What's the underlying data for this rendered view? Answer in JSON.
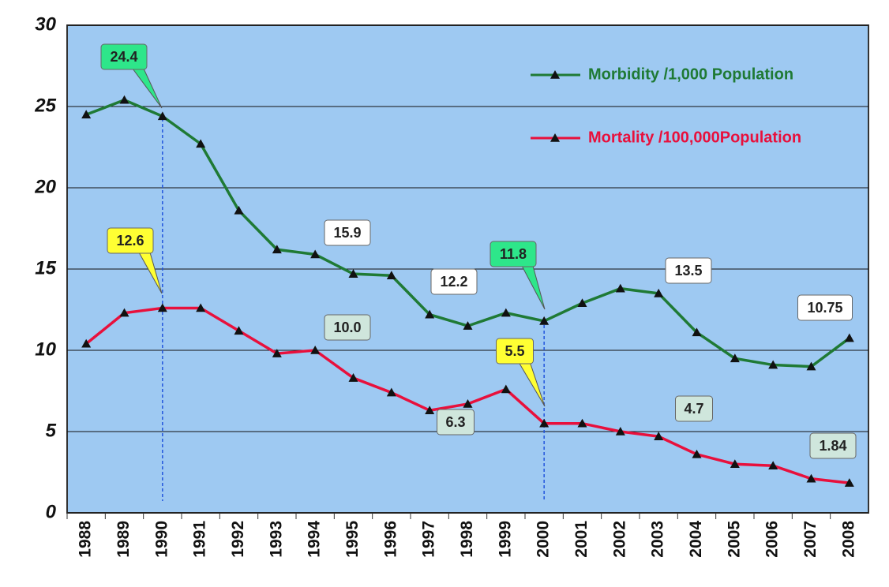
{
  "chart_data": {
    "type": "line",
    "categories": [
      "1988",
      "1989",
      "1990",
      "1991",
      "1992",
      "1993",
      "1994",
      "1995",
      "1996",
      "1997",
      "1998",
      "1999",
      "2000",
      "2001",
      "2002",
      "2003",
      "2004",
      "2005",
      "2006",
      "2007",
      "2008"
    ],
    "series": [
      {
        "name": "Morbidity /1,000 Population",
        "color": "#1f7a35",
        "values": [
          24.5,
          25.4,
          24.4,
          22.7,
          18.6,
          16.2,
          15.9,
          14.7,
          14.6,
          12.2,
          11.5,
          12.3,
          11.8,
          12.9,
          13.8,
          13.5,
          11.1,
          9.5,
          9.1,
          9.0,
          10.75
        ],
        "value_labels": [
          null,
          null,
          "24.4",
          null,
          null,
          null,
          "15.9",
          null,
          null,
          "12.2",
          null,
          null,
          "11.8",
          null,
          null,
          "13.5",
          null,
          null,
          null,
          null,
          "10.75"
        ],
        "label_colors": [
          null,
          null,
          "#2ee68a",
          null,
          null,
          null,
          "#ffffff",
          null,
          null,
          "#ffffff",
          null,
          null,
          "#2ee68a",
          null,
          null,
          "#ffffff",
          null,
          null,
          null,
          null,
          "#ffffff"
        ]
      },
      {
        "name": "Mortality /100,000Population",
        "color": "#e8103c",
        "values": [
          10.4,
          12.3,
          12.6,
          12.6,
          11.2,
          9.8,
          10.0,
          8.3,
          7.4,
          6.3,
          6.7,
          7.6,
          5.5,
          5.5,
          5.0,
          4.7,
          3.6,
          3.0,
          2.9,
          2.1,
          1.84
        ],
        "value_labels": [
          null,
          null,
          "12.6",
          null,
          null,
          null,
          "10.0",
          null,
          null,
          "6.3",
          null,
          null,
          "5.5",
          null,
          null,
          "4.7",
          null,
          null,
          null,
          null,
          "1.84"
        ],
        "label_colors": [
          null,
          null,
          "#ffff33",
          null,
          null,
          null,
          "#cfe6dc",
          null,
          null,
          "#cfe6dc",
          null,
          null,
          "#ffff33",
          null,
          null,
          "#cfe6dc",
          null,
          null,
          null,
          null,
          "#cfe6dc"
        ]
      }
    ],
    "ylim": [
      0,
      30
    ],
    "yticks": [
      0,
      5,
      10,
      15,
      20,
      25,
      30
    ],
    "grid": true,
    "legend": "upper right",
    "background": "#9ec9f2"
  }
}
